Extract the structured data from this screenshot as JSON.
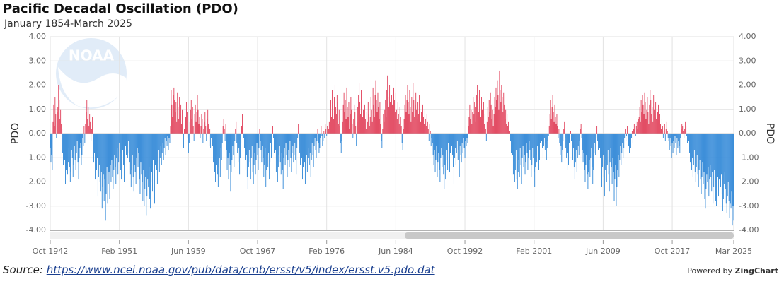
{
  "chart_data": {
    "type": "bar",
    "title": "Pacific Decadal Oscillation (PDO)",
    "subtitle": "January 1854-March 2025",
    "ylabel": "PDO",
    "y2label": "PDO",
    "logo_text": "NOAA",
    "positive_color": "#e03c56",
    "negative_color": "#2a84d6",
    "grid": true,
    "xlim": [
      0,
      989
    ],
    "xticks": [
      {
        "value": 0,
        "label": "Oct 1942"
      },
      {
        "value": 100,
        "label": "Feb 1951"
      },
      {
        "value": 200,
        "label": "Jun 1959"
      },
      {
        "value": 300,
        "label": "Oct 1967"
      },
      {
        "value": 400,
        "label": "Feb 1976"
      },
      {
        "value": 500,
        "label": "Jun 1984"
      },
      {
        "value": 600,
        "label": "Oct 1992"
      },
      {
        "value": 700,
        "label": "Feb 2001"
      },
      {
        "value": 800,
        "label": "Jun 2009"
      },
      {
        "value": 900,
        "label": "Oct 2017"
      },
      {
        "value": 989,
        "label": "Mar 2025"
      }
    ],
    "ylim": [
      -4,
      4
    ],
    "yticks": [
      {
        "value": 4,
        "label": "4.00"
      },
      {
        "value": 3,
        "label": "3.00"
      },
      {
        "value": 2,
        "label": "2.00"
      },
      {
        "value": 1,
        "label": "1.00"
      },
      {
        "value": 0,
        "label": "0.00"
      },
      {
        "value": -1,
        "label": "-1.00"
      },
      {
        "value": -2,
        "label": "-2.00"
      },
      {
        "value": -3,
        "label": "-3.00"
      },
      {
        "value": -4,
        "label": "-4.00"
      }
    ],
    "y2lim": [
      -4,
      4
    ],
    "y2ticks": [
      {
        "value": 4,
        "label": "4.00"
      },
      {
        "value": 3,
        "label": "3.00"
      },
      {
        "value": 2,
        "label": "2.00"
      },
      {
        "value": 1,
        "label": "1.00"
      },
      {
        "value": 0,
        "label": "0.00"
      },
      {
        "value": -1,
        "label": "-1.00"
      },
      {
        "value": -2,
        "label": "-2.00"
      },
      {
        "value": -3,
        "label": "-3.00"
      },
      {
        "value": -4,
        "label": "-4.00"
      }
    ],
    "values": [
      -0.6,
      -1.2,
      -0.9,
      -1.5,
      0.5,
      1.2,
      0.3,
      1.5,
      0.8,
      -0.2,
      0.9,
      1.1,
      2.0,
      1.4,
      0.6,
      1.0,
      0.4,
      0.2,
      -0.8,
      -1.3,
      -1.9,
      -1.1,
      -2.1,
      -1.5,
      -0.9,
      -1.7,
      -1.2,
      -0.6,
      -1.4,
      -2.0,
      -1.6,
      -0.7,
      -1.0,
      -1.8,
      -1.3,
      -0.5,
      -1.1,
      -1.5,
      -0.8,
      -0.3,
      -1.2,
      -1.9,
      -1.0,
      -0.6,
      -0.4,
      -1.3,
      -0.9,
      -0.2,
      -0.5,
      0.3,
      -0.4,
      0.4,
      0.9,
      1.4,
      0.6,
      1.1,
      0.3,
      0.8,
      0.5,
      -0.3,
      0.2,
      0.7,
      -0.5,
      -1.2,
      -0.8,
      -1.9,
      -2.3,
      -1.5,
      -1.0,
      -2.6,
      -1.8,
      -1.3,
      -2.0,
      -2.4,
      -1.6,
      -3.1,
      -2.2,
      -1.7,
      -2.8,
      -1.9,
      -3.6,
      -2.5,
      -1.4,
      -2.9,
      -2.1,
      -1.6,
      -2.7,
      -1.3,
      -2.0,
      -1.1,
      -1.8,
      -2.3,
      -1.5,
      -0.9,
      -1.4,
      -2.1,
      -1.0,
      -0.6,
      -1.7,
      -1.2,
      -0.4,
      -0.8,
      -1.5,
      -1.9,
      -1.1,
      -0.7,
      -1.3,
      -2.0,
      -1.6,
      -0.5,
      -0.9,
      -1.4,
      -1.0,
      -0.3,
      -0.8,
      -1.2,
      -1.7,
      -2.2,
      -1.5,
      -0.9,
      -1.8,
      -2.4,
      -1.3,
      -1.6,
      -2.1,
      -1.0,
      -0.6,
      -1.4,
      -0.8,
      -1.9,
      -2.5,
      -1.2,
      -1.7,
      -2.0,
      -2.8,
      -1.5,
      -3.0,
      -2.3,
      -1.8,
      -3.4,
      -2.6,
      -1.9,
      -2.2,
      -1.4,
      -2.7,
      -3.1,
      -2.0,
      -1.6,
      -2.4,
      -1.1,
      -1.8,
      -2.9,
      -1.3,
      -0.9,
      -1.5,
      -2.1,
      -1.2,
      -0.7,
      -1.6,
      -1.0,
      -0.5,
      -1.3,
      -0.8,
      -0.4,
      -1.1,
      -0.6,
      -0.2,
      -0.9,
      -0.3,
      -0.5,
      -0.1,
      -0.7,
      -0.2,
      -0.4,
      0.3,
      1.8,
      1.2,
      0.7,
      1.6,
      1.9,
      1.4,
      0.9,
      1.3,
      0.5,
      1.7,
      1.1,
      0.6,
      1.5,
      0.8,
      1.2,
      0.4,
      1.0,
      -0.3,
      -0.6,
      0.2,
      -0.5,
      0.7,
      1.3,
      0.9,
      -0.2,
      -0.8,
      -0.4,
      0.5,
      1.0,
      1.4,
      0.6,
      1.1,
      0.3,
      -0.3,
      0.8,
      1.2,
      0.5,
      0.9,
      1.6,
      1.0,
      0.4,
      0.7,
      -0.2,
      0.3,
      0.8,
      0.6,
      -0.4,
      0.2,
      0.5,
      0.9,
      0.3,
      -0.3,
      0.6,
      1.0,
      0.4,
      -0.5,
      0.2,
      -0.6,
      -0.2,
      0.1,
      -0.5,
      -1.2,
      -0.8,
      -1.6,
      -2.0,
      -1.3,
      -0.9,
      -1.7,
      -2.2,
      -1.4,
      -1.0,
      -1.8,
      -0.6,
      -1.1,
      -0.4,
      0.3,
      0.6,
      0.2,
      -0.3,
      0.4,
      -0.7,
      -1.5,
      -1.0,
      -1.9,
      -0.8,
      -1.3,
      -2.4,
      -1.6,
      -1.1,
      -0.5,
      -0.9,
      -1.4,
      -0.3,
      0.2,
      0.5,
      -0.4,
      -0.8,
      -1.2,
      -0.6,
      -1.7,
      -1.0,
      -0.4,
      0.3,
      0.8,
      0.4,
      -0.2,
      -0.6,
      -1.1,
      -1.5,
      -0.9,
      -1.8,
      -2.3,
      -1.4,
      -0.7,
      -1.2,
      -1.9,
      -1.0,
      -0.5,
      -1.6,
      -2.1,
      -1.3,
      -0.8,
      -1.7,
      -1.1,
      -0.4,
      -0.9,
      -1.5,
      -0.6,
      0.2,
      -0.3,
      -0.7,
      -1.2,
      -0.5,
      -1.0,
      -1.8,
      -1.3,
      -0.6,
      -2.2,
      -1.5,
      -0.9,
      -1.4,
      -0.8,
      -1.9,
      -1.2,
      -0.4,
      -1.0,
      -0.6,
      0.3,
      -0.2,
      -0.8,
      -1.3,
      -0.7,
      -1.6,
      -1.1,
      -2.0,
      -1.4,
      -0.9,
      -0.5,
      -1.2,
      -1.7,
      -0.8,
      -1.5,
      -2.3,
      -1.0,
      -0.6,
      -1.3,
      -0.4,
      -0.9,
      -1.8,
      -1.1,
      -0.7,
      -1.4,
      -0.3,
      -1.0,
      -1.6,
      -0.8,
      -0.5,
      -1.2,
      -0.9,
      -0.4,
      -1.1,
      -1.7,
      -0.6,
      -0.2,
      0.4,
      -0.3,
      -0.8,
      -1.3,
      -0.5,
      -1.0,
      -1.9,
      -1.4,
      -0.7,
      -1.2,
      -2.1,
      -1.5,
      -0.9,
      -1.6,
      -1.0,
      -0.6,
      -1.3,
      -0.8,
      -1.8,
      -1.1,
      -0.4,
      -0.9,
      -1.4,
      -0.5,
      -0.2,
      -0.7,
      -1.0,
      -0.3,
      0.2,
      -0.4,
      -0.8,
      -0.6,
      -0.2,
      0.3,
      -0.1,
      -0.5,
      -0.3,
      0.1,
      -0.2,
      0.4,
      0.2,
      -0.1,
      0.3,
      0.5,
      0.2,
      0.5,
      0.9,
      1.4,
      0.7,
      1.8,
      1.2,
      0.6,
      1.5,
      2.0,
      1.1,
      0.8,
      1.6,
      1.3,
      0.4,
      1.0,
      0.3,
      -0.4,
      -0.8,
      -0.3,
      0.5,
      1.2,
      1.7,
      0.9,
      1.4,
      0.6,
      1.9,
      1.1,
      0.7,
      1.3,
      0.2,
      0.8,
      1.5,
      1.0,
      0.4,
      -0.2,
      0.6,
      1.2,
      0.9,
      0.3,
      -0.5,
      0.5,
      1.1,
      1.6,
      2.1,
      1.3,
      0.8,
      1.8,
      1.4,
      0.7,
      1.0,
      0.4,
      1.2,
      0.6,
      0.2,
      0.9,
      0.5,
      1.3,
      0.8,
      0.3,
      0.7,
      1.5,
      1.0,
      0.5,
      1.9,
      1.2,
      0.7,
      1.6,
      2.2,
      1.4,
      0.9,
      1.7,
      1.1,
      0.6,
      1.3,
      0.4,
      -0.3,
      -0.6,
      0.2,
      0.8,
      0.5,
      1.0,
      1.4,
      0.7,
      1.8,
      2.4,
      1.5,
      1.1,
      2.0,
      1.3,
      0.8,
      1.6,
      1.2,
      2.5,
      1.9,
      1.4,
      0.9,
      1.7,
      1.0,
      0.6,
      1.3,
      0.8,
      0.4,
      1.1,
      0.7,
      0.3,
      -0.4,
      -0.7,
      0.2,
      0.6,
      1.2,
      1.6,
      0.9,
      1.4,
      2.0,
      1.3,
      0.8,
      1.8,
      1.1,
      0.5,
      1.5,
      0.9,
      2.1,
      1.4,
      0.7,
      1.2,
      1.7,
      1.0,
      0.6,
      1.3,
      0.8,
      1.6,
      1.1,
      0.5,
      0.9,
      0.3,
      1.2,
      0.7,
      0.4,
      1.0,
      0.6,
      0.3,
      0.8,
      0.5,
      0.2,
      -0.3,
      0.4,
      0.1,
      -0.5,
      -0.2,
      -0.4,
      -0.9,
      -1.3,
      -0.7,
      -1.6,
      -1.1,
      -0.5,
      -1.8,
      -1.2,
      -0.8,
      -1.5,
      -2.0,
      -1.0,
      -0.6,
      -1.4,
      -0.9,
      -1.7,
      -2.3,
      -1.3,
      -1.9,
      -1.1,
      -0.7,
      -1.5,
      -0.4,
      -1.0,
      -1.6,
      -0.8,
      -1.2,
      -0.5,
      -0.9,
      -1.4,
      -2.1,
      -1.0,
      -0.6,
      -1.3,
      -0.8,
      -0.3,
      -1.1,
      -0.7,
      -1.8,
      -0.5,
      -0.9,
      -1.2,
      -0.4,
      -0.8,
      -0.2,
      -0.6,
      -1.0,
      -0.3,
      -0.5,
      -0.2,
      -0.4,
      0.3,
      0.7,
      1.2,
      0.6,
      1.0,
      0.4,
      0.9,
      1.5,
      0.8,
      1.3,
      0.5,
      1.1,
      1.6,
      2.0,
      1.4,
      0.9,
      1.8,
      1.2,
      0.7,
      1.5,
      1.0,
      0.6,
      1.3,
      0.4,
      0.8,
      0.2,
      -0.3,
      0.5,
      1.1,
      0.7,
      1.4,
      0.9,
      1.7,
      1.2,
      0.6,
      1.0,
      0.3,
      0.8,
      1.5,
      1.1,
      1.9,
      1.4,
      2.2,
      1.6,
      1.0,
      2.6,
      1.8,
      1.3,
      2.0,
      1.5,
      0.9,
      1.7,
      1.2,
      0.6,
      1.0,
      0.4,
      0.8,
      0.3,
      0.5,
      0.2,
      0.1,
      -0.3,
      -0.8,
      -1.4,
      -0.9,
      -1.7,
      -1.2,
      -2.0,
      -1.5,
      -0.7,
      -1.9,
      -2.3,
      -1.6,
      -1.1,
      -1.8,
      -0.6,
      -1.3,
      -2.1,
      -1.0,
      -0.5,
      -1.4,
      -0.9,
      -1.7,
      -1.2,
      -0.4,
      -0.8,
      -1.5,
      -1.0,
      -0.3,
      -0.7,
      -1.1,
      -1.8,
      -1.3,
      -0.6,
      -1.0,
      -1.6,
      -2.2,
      -1.4,
      -0.9,
      -1.2,
      -0.5,
      -0.8,
      -1.5,
      -1.1,
      -0.4,
      -0.9,
      -0.3,
      -0.6,
      -1.0,
      -0.5,
      -0.2,
      -0.7,
      -0.4,
      -1.1,
      -0.6,
      -0.3,
      -0.1,
      0.3,
      0.8,
      1.4,
      0.6,
      1.1,
      1.6,
      0.9,
      0.5,
      1.2,
      0.7,
      0.4,
      0.8,
      0.3,
      -0.2,
      0.2,
      -0.4,
      -0.9,
      -0.5,
      -1.2,
      -0.7,
      -0.3,
      0.2,
      0.5,
      -0.2,
      -0.6,
      -1.0,
      -1.5,
      -0.8,
      -1.3,
      -0.4,
      0.3,
      0.1,
      -0.3,
      -0.8,
      -1.1,
      -0.6,
      -1.4,
      -1.9,
      -1.2,
      -0.7,
      -1.6,
      -1.0,
      -0.5,
      -0.9,
      -0.3,
      0.2,
      0.4,
      -0.2,
      -0.7,
      -1.2,
      -0.8,
      -1.5,
      -2.0,
      -1.3,
      -0.9,
      -1.7,
      -2.3,
      -1.6,
      -1.1,
      -1.8,
      -1.0,
      -0.6,
      -1.4,
      -2.1,
      -1.5,
      -0.8,
      -0.4,
      -0.9,
      -0.2,
      0.3,
      -0.3,
      -0.7,
      -1.2,
      -0.6,
      -1.0,
      -1.6,
      -2.2,
      -1.4,
      -0.9,
      -1.8,
      -2.6,
      -1.5,
      -1.1,
      -2.0,
      -1.3,
      -0.7,
      -1.7,
      -2.4,
      -1.2,
      -0.6,
      -1.4,
      -2.1,
      -1.0,
      -1.6,
      -2.8,
      -1.9,
      -1.3,
      -3.0,
      -2.2,
      -1.5,
      -0.9,
      -1.8,
      -1.1,
      -0.5,
      -1.3,
      -0.8,
      -0.4,
      -1.0,
      -0.6,
      -0.2,
      0.2,
      -0.3,
      -0.1,
      0.3,
      -0.2,
      -0.5,
      -0.8,
      -0.3,
      -0.6,
      -0.2,
      0.1,
      -0.4,
      0.2,
      0.4,
      0.2,
      -0.1,
      0.3,
      0.5,
      0.2,
      0.6,
      0.7,
      1.1,
      0.5,
      1.4,
      0.9,
      1.6,
      1.2,
      0.8,
      1.7,
      1.3,
      0.6,
      1.0,
      1.5,
      0.9,
      0.4,
      1.2,
      1.8,
      1.4,
      0.8,
      1.1,
      0.5,
      1.6,
      1.0,
      0.7,
      1.3,
      0.6,
      0.3,
      0.9,
      1.2,
      0.5,
      0.8,
      0.4,
      0.2,
      0.6,
      0.3,
      -0.2,
      0.1,
      0.4,
      -0.3,
      0.2,
      0.5,
      0.1,
      -0.2,
      -0.3,
      -0.7,
      -0.2,
      -0.5,
      -1.0,
      -0.4,
      -0.8,
      -0.3,
      -0.6,
      -0.1,
      -0.4,
      -0.9,
      -0.2,
      -0.6,
      -0.3,
      -0.5,
      -0.8,
      -0.2,
      0.2,
      0.4,
      0.3,
      0.1,
      -0.2,
      0.2,
      0.5,
      0.3,
      -0.1,
      -0.4,
      -0.6,
      -0.3,
      -0.8,
      -1.2,
      -0.6,
      -1.5,
      -1.0,
      -1.8,
      -1.3,
      -0.7,
      -1.6,
      -2.0,
      -1.4,
      -0.9,
      -1.7,
      -2.2,
      -1.5,
      -1.1,
      -1.9,
      -2.5,
      -1.8,
      -1.2,
      -2.1,
      -1.6,
      -2.7,
      -3.1,
      -2.3,
      -1.7,
      -2.0,
      -1.4,
      -2.6,
      -1.9,
      -1.3,
      -1.8,
      -2.4,
      -1.6,
      -2.9,
      -2.2,
      -1.5,
      -2.0,
      -2.8,
      -3.0,
      -2.4,
      -1.8,
      -2.6,
      -1.9,
      -1.4,
      -2.2,
      -1.7,
      -2.5,
      -3.2,
      -2.7,
      -2.1,
      -1.6,
      -2.3,
      -2.9,
      -3.3,
      -2.6,
      -2.0,
      -2.8,
      -3.5,
      -2.9,
      -3.1,
      -2.4,
      -3.8,
      -3.0,
      -3.6
    ]
  },
  "footer": {
    "source_label": "Source:",
    "source_url": "https://www.ncei.noaa.gov/pub/data/cmb/ersst/v5/index/ersst.v5.pdo.dat",
    "powered_by": "Powered by",
    "brand": "ZingChart"
  }
}
